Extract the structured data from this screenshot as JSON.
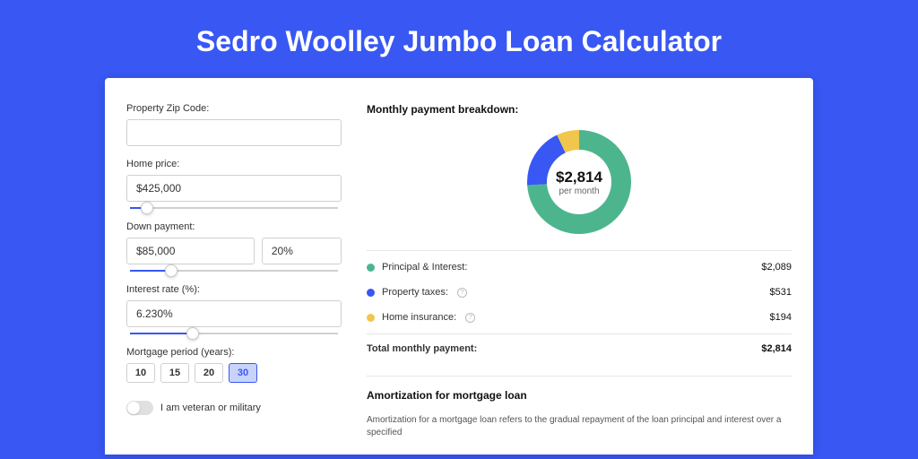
{
  "page_title": "Sedro Woolley Jumbo Loan Calculator",
  "colors": {
    "page_bg": "#3857f3",
    "panel_bg": "#ffffff",
    "accent": "#3857f3",
    "principal": "#4db58e",
    "taxes": "#3857f3",
    "insurance": "#f0c64d"
  },
  "form": {
    "zip_label": "Property Zip Code:",
    "zip_value": "",
    "price_label": "Home price:",
    "price_value": "$425,000",
    "price_slider_pct": 8,
    "down_label": "Down payment:",
    "down_amount": "$85,000",
    "down_pct": "20%",
    "down_slider_pct": 20,
    "rate_label": "Interest rate (%):",
    "rate_value": "6.230%",
    "rate_slider_pct": 30,
    "period_label": "Mortgage period (years):",
    "period_options": [
      "10",
      "15",
      "20",
      "30"
    ],
    "period_selected": "30",
    "veteran_label": "I am veteran or military",
    "veteran_on": false
  },
  "breakdown": {
    "title": "Monthly payment breakdown:",
    "donut": {
      "amount": "$2,814",
      "sub": "per month",
      "segments": [
        {
          "label": "principal",
          "pct": 74,
          "color": "#4db58e"
        },
        {
          "label": "taxes",
          "pct": 19,
          "color": "#3857f3"
        },
        {
          "label": "insurance",
          "pct": 7,
          "color": "#f0c64d"
        }
      ]
    },
    "lines": [
      {
        "label": "Principal & Interest:",
        "value": "$2,089",
        "color": "#4db58e",
        "info": false
      },
      {
        "label": "Property taxes:",
        "value": "$531",
        "color": "#3857f3",
        "info": true
      },
      {
        "label": "Home insurance:",
        "value": "$194",
        "color": "#f0c64d",
        "info": true
      }
    ],
    "total_label": "Total monthly payment:",
    "total_value": "$2,814"
  },
  "amort": {
    "title": "Amortization for mortgage loan",
    "text": "Amortization for a mortgage loan refers to the gradual repayment of the loan principal and interest over a specified"
  }
}
